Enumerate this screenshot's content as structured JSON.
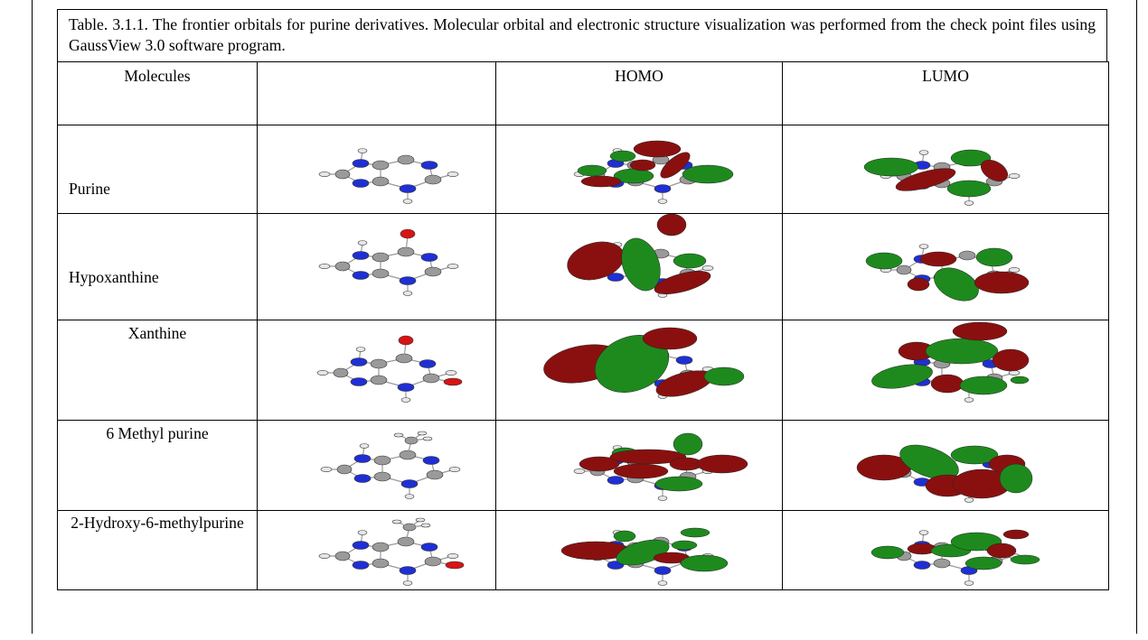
{
  "caption": "Table. 3.1.1. The frontier orbitals for purine derivatives. Molecular orbital and electronic structure visualization was performed from the check point files using GaussView 3.0 software program.",
  "headers": {
    "molecules": "Molecules",
    "structure": "",
    "homo": "HOMO",
    "lumo": "LUMO"
  },
  "rows": [
    {
      "name": "Purine"
    },
    {
      "name": "Hypoxanthine"
    },
    {
      "name": "Xanthine"
    },
    {
      "name": "6 Methyl purine"
    },
    {
      "name": "2-Hydroxy-6-methylpurine"
    }
  ],
  "colors": {
    "carbon": "#9a9a9a",
    "nitrogen": "#1f2fd6",
    "oxygen": "#d81414",
    "hydrogen": "#e6e6e6",
    "orbital_red": "#8a1010",
    "orbital_green": "#1e8a1e"
  }
}
